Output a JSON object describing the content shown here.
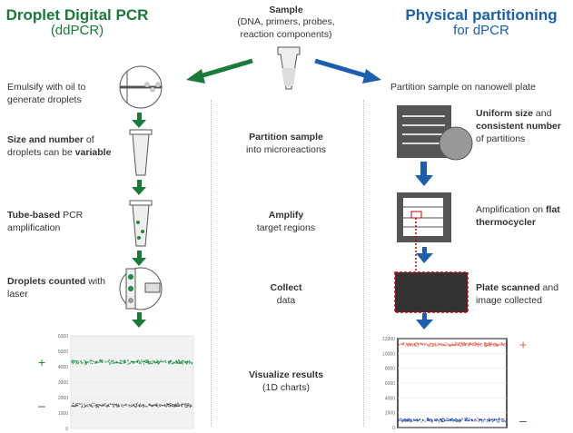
{
  "left": {
    "title": "Droplet Digital PCR",
    "subtitle": "(ddPCR)",
    "color": "#1a7a3a",
    "steps": [
      {
        "plain": "Emulsify with oil to generate droplets"
      },
      {
        "bold": "Size and number",
        "plain": " of droplets can be ",
        "bold2": "variable"
      },
      {
        "bold": "Tube-based",
        "plain": " PCR amplification"
      },
      {
        "bold": "Droplets counted",
        "plain": " with laser"
      }
    ]
  },
  "center": {
    "title": "Sample",
    "subtitle": "(DNA, primers, probes, reaction components)",
    "steps": [
      {
        "bold": "Partition sample",
        "plain": "into microreactions"
      },
      {
        "bold": "Amplify",
        "plain": "target regions"
      },
      {
        "bold": "Collect",
        "plain": "data"
      },
      {
        "bold": "Visualize results",
        "plain": "(1D charts)"
      }
    ]
  },
  "right": {
    "title": "Physical partitioning",
    "subtitle": "for dPCR",
    "color": "#1c5fae",
    "steps": [
      {
        "plain": "Partition sample on nanowell plate"
      },
      {
        "bold": "Uniform size",
        "plain": " and ",
        "bold2": "consistent number",
        "plain2": " of partitions"
      },
      {
        "plain": "Amplification on ",
        "bold": "flat thermocycler"
      },
      {
        "bold": "Plate scanned",
        "plain": " and image collected"
      }
    ]
  },
  "chart_data": [
    {
      "type": "scatter",
      "yticks": [
        "0",
        "1000",
        "2000",
        "3000",
        "4000",
        "5000",
        "6000"
      ],
      "ylim": [
        0,
        6000
      ],
      "series": [
        {
          "label": "+",
          "color": "#1a8a44",
          "value": 4300
        },
        {
          "label": "–",
          "color": "#555555",
          "value": 1500
        }
      ]
    },
    {
      "type": "scatter",
      "yticks": [
        "0",
        "2000",
        "4000",
        "6000",
        "8000",
        "10000",
        "12000"
      ],
      "ylim": [
        0,
        12000
      ],
      "series": [
        {
          "label": "+",
          "color": "#e8604c",
          "value": 11200
        },
        {
          "label": "–",
          "color": "#2e4fa8",
          "value": 1000
        }
      ]
    }
  ]
}
